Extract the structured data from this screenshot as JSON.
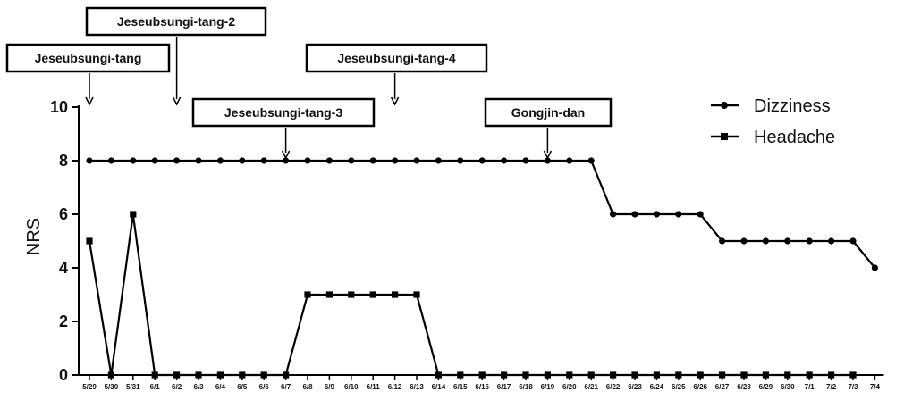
{
  "chart_data": {
    "type": "line",
    "xlabel": "",
    "ylabel": "NRS",
    "ylim": [
      0,
      10
    ],
    "yticks": [
      0,
      2,
      4,
      6,
      8,
      10
    ],
    "grid": false,
    "legend_position": "top-right",
    "categories": [
      "5/29",
      "5/30",
      "5/31",
      "6/1",
      "6/2",
      "6/3",
      "6/4",
      "6/5",
      "6/6",
      "6/7",
      "6/8",
      "6/9",
      "6/10",
      "6/11",
      "6/12",
      "6/13",
      "6/14",
      "6/15",
      "6/16",
      "6/17",
      "6/18",
      "6/19",
      "6/20",
      "6/21",
      "6/22",
      "6/23",
      "6/24",
      "6/25",
      "6/26",
      "6/27",
      "6/28",
      "6/29",
      "6/30",
      "7/1",
      "7/2",
      "7/3",
      "7/4"
    ],
    "series": [
      {
        "name": "Dizziness",
        "marker": "circle",
        "color": "#000000",
        "values": [
          8,
          8,
          8,
          8,
          8,
          8,
          8,
          8,
          8,
          8,
          8,
          8,
          8,
          8,
          8,
          8,
          8,
          8,
          8,
          8,
          8,
          8,
          8,
          8,
          6,
          6,
          6,
          6,
          6,
          5,
          5,
          5,
          5,
          5,
          5,
          5,
          4
        ]
      },
      {
        "name": "Headache",
        "marker": "square",
        "color": "#000000",
        "values": [
          5,
          0,
          6,
          0,
          0,
          0,
          0,
          0,
          0,
          0,
          3,
          3,
          3,
          3,
          3,
          3,
          0,
          0,
          0,
          0,
          0,
          0,
          0,
          0,
          0,
          0,
          0,
          0,
          0,
          0,
          0,
          0,
          0,
          0,
          0,
          0,
          null
        ]
      }
    ],
    "annotations": [
      {
        "label": "Jeseubsungi-tang",
        "x": "5/29"
      },
      {
        "label": "Jeseubsungi-tang-2",
        "x": "6/2"
      },
      {
        "label": "Jeseubsungi-tang-3",
        "x": "6/7"
      },
      {
        "label": "Jeseubsungi-tang-4",
        "x": "6/12"
      },
      {
        "label": "Gongjin-dan",
        "x": "6/19"
      }
    ]
  }
}
